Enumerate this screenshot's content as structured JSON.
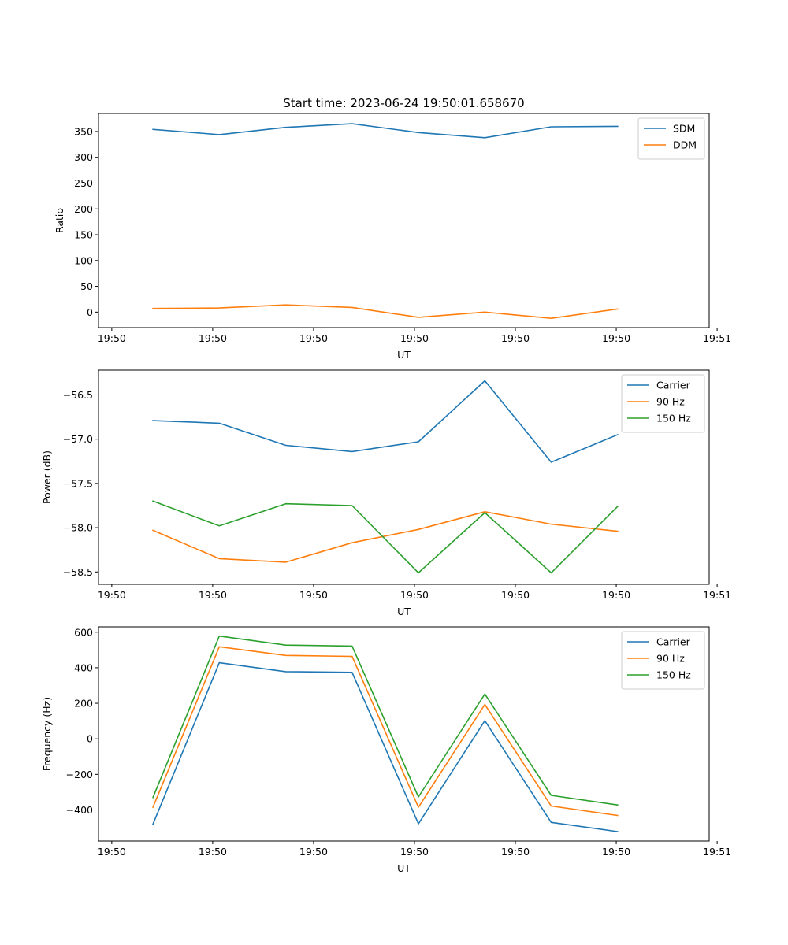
{
  "figure": {
    "title": "Start time: 2023-06-24 19:50:01.658670"
  },
  "colors": {
    "blue": "#1f77b4",
    "orange": "#ff7f0e",
    "green": "#2ca02c"
  },
  "chart_data": [
    {
      "type": "line",
      "title": "Start time: 2023-06-24 19:50:01.658670",
      "xlabel": "UT",
      "ylabel": "Ratio",
      "x": [
        1,
        2,
        3,
        4,
        5,
        6,
        7,
        8
      ],
      "xlim": [
        0.18,
        9.38
      ],
      "xticks": [
        0.38,
        1.9,
        3.42,
        4.94,
        6.46,
        7.98,
        9.5
      ],
      "xtick_labels": [
        "19:50",
        "19:50",
        "19:50",
        "19:50",
        "19:50",
        "19:50",
        "19:51"
      ],
      "ylim": [
        -30,
        385
      ],
      "yticks": [
        0,
        50,
        100,
        150,
        200,
        250,
        300,
        350
      ],
      "ytick_labels": [
        "0",
        "50",
        "100",
        "150",
        "200",
        "250",
        "300",
        "350"
      ],
      "legend": "top-right",
      "series": [
        {
          "name": "SDM",
          "color": "#1f77b4",
          "values": [
            354,
            344,
            358,
            365,
            348,
            338,
            359,
            360
          ]
        },
        {
          "name": "DDM",
          "color": "#ff7f0e",
          "values": [
            7,
            8,
            14,
            9,
            -10,
            0,
            -12,
            6
          ]
        }
      ]
    },
    {
      "type": "line",
      "xlabel": "UT",
      "ylabel": "Power (dB)",
      "x": [
        1,
        2,
        3,
        4,
        5,
        6,
        7,
        8
      ],
      "xlim": [
        0.18,
        9.38
      ],
      "xticks": [
        0.38,
        1.9,
        3.42,
        4.94,
        6.46,
        7.98,
        9.5
      ],
      "xtick_labels": [
        "19:50",
        "19:50",
        "19:50",
        "19:50",
        "19:50",
        "19:50",
        "19:51"
      ],
      "ylim": [
        -58.64,
        -56.22
      ],
      "yticks": [
        -58.5,
        -58.0,
        -57.5,
        -57.0,
        -56.5
      ],
      "ytick_labels": [
        "−58.5",
        "−58.0",
        "−57.5",
        "−57.0",
        "−56.5"
      ],
      "legend": "top-right",
      "series": [
        {
          "name": "Carrier",
          "color": "#1f77b4",
          "values": [
            -56.79,
            -56.82,
            -57.07,
            -57.14,
            -57.03,
            -56.34,
            -57.26,
            -56.95
          ]
        },
        {
          "name": "90 Hz",
          "color": "#ff7f0e",
          "values": [
            -58.03,
            -58.35,
            -58.39,
            -58.17,
            -58.02,
            -57.82,
            -57.96,
            -58.04
          ]
        },
        {
          "name": "150 Hz",
          "color": "#2ca02c",
          "values": [
            -57.7,
            -57.98,
            -57.73,
            -57.75,
            -58.51,
            -57.83,
            -58.51,
            -57.76
          ]
        }
      ]
    },
    {
      "type": "line",
      "xlabel": "UT",
      "ylabel": "Frequency (Hz)",
      "x": [
        1,
        2,
        3,
        4,
        5,
        6,
        7,
        8
      ],
      "xlim": [
        0.18,
        9.38
      ],
      "xticks": [
        0.38,
        1.9,
        3.42,
        4.94,
        6.46,
        7.98,
        9.5
      ],
      "xtick_labels": [
        "19:50",
        "19:50",
        "19:50",
        "19:50",
        "19:50",
        "19:50",
        "19:51"
      ],
      "ylim": [
        -575,
        630
      ],
      "yticks": [
        -400,
        -200,
        0,
        200,
        400,
        600
      ],
      "ytick_labels": [
        "−400",
        "−200",
        "0",
        "200",
        "400",
        "600"
      ],
      "legend": "top-right",
      "series": [
        {
          "name": "Carrier",
          "color": "#1f77b4",
          "values": [
            -480,
            428,
            378,
            374,
            -478,
            102,
            -470,
            -522
          ]
        },
        {
          "name": "90 Hz",
          "color": "#ff7f0e",
          "values": [
            -385,
            518,
            469,
            464,
            -385,
            193,
            -378,
            -431
          ]
        },
        {
          "name": "150 Hz",
          "color": "#2ca02c",
          "values": [
            -330,
            578,
            527,
            522,
            -327,
            252,
            -318,
            -372
          ]
        }
      ]
    }
  ]
}
